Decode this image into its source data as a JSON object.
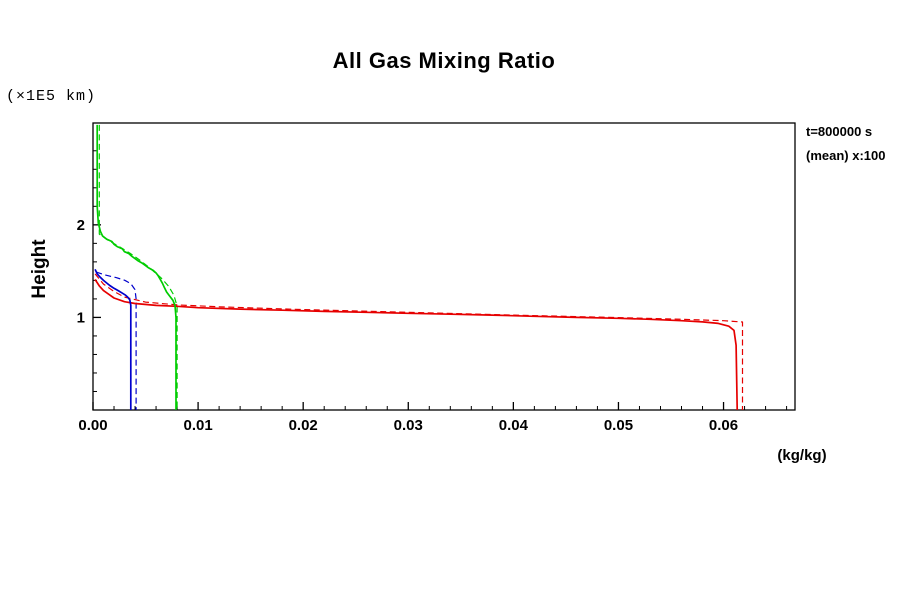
{
  "chart_data": {
    "type": "line",
    "title": "All Gas Mixing Ratio",
    "ylabel": "Height",
    "xlabel": "",
    "y_unit_label": "(×1E5 km)",
    "x_unit_label": "(kg/kg)",
    "annotations": [
      "t=800000 s",
      "(mean) x:100"
    ],
    "grid": false,
    "legend": "none",
    "axis_color": "#000000",
    "xlim": [
      0,
      0.0668
    ],
    "ylim": [
      0,
      3.1
    ],
    "x_ticks": [
      {
        "value": 0.0,
        "label": "0.00"
      },
      {
        "value": 0.01,
        "label": "0.01"
      },
      {
        "value": 0.02,
        "label": "0.02"
      },
      {
        "value": 0.03,
        "label": "0.03"
      },
      {
        "value": 0.04,
        "label": "0.04"
      },
      {
        "value": 0.05,
        "label": "0.05"
      },
      {
        "value": 0.06,
        "label": "0.06"
      }
    ],
    "x_minor_step": 0.002,
    "y_ticks": [
      {
        "value": 1,
        "label": "1"
      },
      {
        "value": 2,
        "label": "2"
      }
    ],
    "y_minor_step": 0.2,
    "series": [
      {
        "name": "gas1-reference",
        "color": "#e60000",
        "style": "dashed",
        "points": [
          [
            0.0002,
            1.47
          ],
          [
            0.001,
            1.36
          ],
          [
            0.002,
            1.28
          ],
          [
            0.003,
            1.22
          ],
          [
            0.005,
            1.165
          ],
          [
            0.008,
            1.135
          ],
          [
            0.012,
            1.115
          ],
          [
            0.02,
            1.085
          ],
          [
            0.03,
            1.055
          ],
          [
            0.04,
            1.025
          ],
          [
            0.05,
            0.998
          ],
          [
            0.056,
            0.98
          ],
          [
            0.06,
            0.965
          ],
          [
            0.0618,
            0.95
          ],
          [
            0.0618,
            0
          ]
        ]
      },
      {
        "name": "gas1-simulated",
        "color": "#e60000",
        "style": "solid",
        "points": [
          [
            0.0002,
            1.41
          ],
          [
            0.0006,
            1.34
          ],
          [
            0.001,
            1.29
          ],
          [
            0.0015,
            1.25
          ],
          [
            0.002,
            1.21
          ],
          [
            0.003,
            1.17
          ],
          [
            0.004,
            1.15
          ],
          [
            0.006,
            1.13
          ],
          [
            0.008,
            1.12
          ],
          [
            0.01,
            1.105
          ],
          [
            0.014,
            1.09
          ],
          [
            0.018,
            1.078
          ],
          [
            0.022,
            1.065
          ],
          [
            0.026,
            1.055
          ],
          [
            0.03,
            1.045
          ],
          [
            0.034,
            1.035
          ],
          [
            0.038,
            1.025
          ],
          [
            0.042,
            1.012
          ],
          [
            0.046,
            1.0
          ],
          [
            0.05,
            0.99
          ],
          [
            0.053,
            0.98
          ],
          [
            0.056,
            0.965
          ],
          [
            0.058,
            0.952
          ],
          [
            0.0595,
            0.935
          ],
          [
            0.0605,
            0.905
          ],
          [
            0.061,
            0.86
          ],
          [
            0.0612,
            0.7
          ],
          [
            0.0613,
            0
          ]
        ]
      },
      {
        "name": "gas2-reference",
        "color": "#00cc00",
        "style": "dashed",
        "points": [
          [
            0.0006,
            3.08
          ],
          [
            0.0006,
            1.9
          ],
          [
            0.0015,
            1.83
          ],
          [
            0.0025,
            1.765
          ],
          [
            0.0035,
            1.695
          ],
          [
            0.0045,
            1.615
          ],
          [
            0.0055,
            1.525
          ],
          [
            0.0065,
            1.425
          ],
          [
            0.0072,
            1.335
          ],
          [
            0.0077,
            1.24
          ],
          [
            0.008,
            1.12
          ],
          [
            0.008,
            0
          ]
        ]
      },
      {
        "name": "gas2-simulated",
        "color": "#00cc00",
        "style": "solid",
        "points": [
          [
            0.0004,
            3.08
          ],
          [
            0.0004,
            2.2
          ],
          [
            0.0005,
            2.02
          ],
          [
            0.0007,
            1.93
          ],
          [
            0.0009,
            1.88
          ],
          [
            0.0013,
            1.845
          ],
          [
            0.0018,
            1.82
          ],
          [
            0.002,
            1.79
          ],
          [
            0.0023,
            1.765
          ],
          [
            0.0028,
            1.74
          ],
          [
            0.003,
            1.71
          ],
          [
            0.0034,
            1.69
          ],
          [
            0.0037,
            1.66
          ],
          [
            0.004,
            1.635
          ],
          [
            0.0043,
            1.61
          ],
          [
            0.0047,
            1.585
          ],
          [
            0.005,
            1.56
          ],
          [
            0.0053,
            1.535
          ],
          [
            0.0057,
            1.51
          ],
          [
            0.006,
            1.48
          ],
          [
            0.0062,
            1.45
          ],
          [
            0.0064,
            1.41
          ],
          [
            0.0066,
            1.37
          ],
          [
            0.0068,
            1.32
          ],
          [
            0.007,
            1.275
          ],
          [
            0.0073,
            1.23
          ],
          [
            0.0076,
            1.185
          ],
          [
            0.0078,
            1.13
          ],
          [
            0.0079,
            1.0
          ],
          [
            0.0079,
            0
          ]
        ]
      },
      {
        "name": "gas3-reference",
        "color": "#0000cc",
        "style": "dashed",
        "points": [
          [
            0.0003,
            1.49
          ],
          [
            0.0012,
            1.457
          ],
          [
            0.0022,
            1.43
          ],
          [
            0.003,
            1.402
          ],
          [
            0.0036,
            1.365
          ],
          [
            0.004,
            1.3
          ],
          [
            0.0041,
            1.2
          ],
          [
            0.0041,
            0
          ]
        ]
      },
      {
        "name": "gas3-simulated",
        "color": "#0000cc",
        "style": "solid",
        "points": [
          [
            0.0002,
            1.52
          ],
          [
            0.0004,
            1.47
          ],
          [
            0.0007,
            1.432
          ],
          [
            0.001,
            1.4
          ],
          [
            0.0013,
            1.372
          ],
          [
            0.0016,
            1.345
          ],
          [
            0.002,
            1.315
          ],
          [
            0.0024,
            1.29
          ],
          [
            0.0028,
            1.262
          ],
          [
            0.0031,
            1.24
          ],
          [
            0.0033,
            1.22
          ],
          [
            0.0035,
            1.19
          ],
          [
            0.0036,
            1.13
          ],
          [
            0.0036,
            0
          ]
        ]
      }
    ]
  }
}
